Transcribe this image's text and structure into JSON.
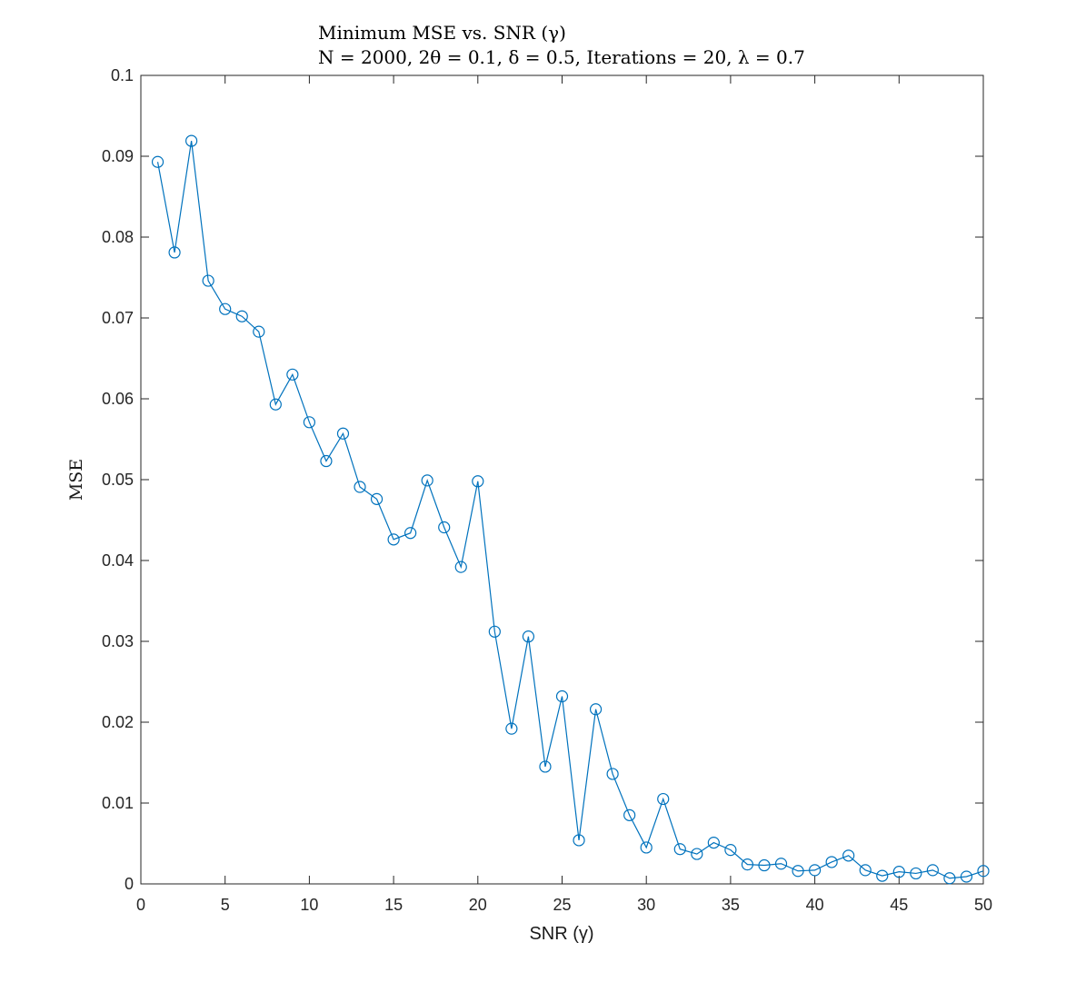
{
  "chart_data": {
    "type": "line",
    "title": "Minimum MSE vs. SNR (γ)",
    "subtitle": "N = 2000, 2θ = 0.1, δ = 0.5, Iterations = 20, λ = 0.7",
    "xlabel": "SNR (γ)",
    "ylabel": "MSE",
    "xlim": [
      0,
      50
    ],
    "ylim": [
      0,
      0.1
    ],
    "xticks": [
      0,
      5,
      10,
      15,
      20,
      25,
      30,
      35,
      40,
      45,
      50
    ],
    "xtick_labels": [
      "0",
      "5",
      "10",
      "15",
      "20",
      "25",
      "30",
      "35",
      "40",
      "45",
      "50"
    ],
    "yticks": [
      0,
      0.01,
      0.02,
      0.03,
      0.04,
      0.05,
      0.06,
      0.07,
      0.08,
      0.09,
      0.1
    ],
    "ytick_labels": [
      "0",
      "0.01",
      "0.02",
      "0.03",
      "0.04",
      "0.05",
      "0.06",
      "0.07",
      "0.08",
      "0.09",
      "0.1"
    ],
    "grid": false,
    "marker": "circle",
    "series": [
      {
        "color": "#0072BD",
        "x": [
          1,
          2,
          3,
          4,
          5,
          6,
          7,
          8,
          9,
          10,
          11,
          12,
          13,
          14,
          15,
          16,
          17,
          18,
          19,
          20,
          21,
          22,
          23,
          24,
          25,
          26,
          27,
          28,
          29,
          30,
          31,
          32,
          33,
          34,
          35,
          36,
          37,
          38,
          39,
          40,
          41,
          42,
          43,
          44,
          45,
          46,
          47,
          48,
          49,
          50
        ],
        "y": [
          0.0893,
          0.0781,
          0.0919,
          0.0746,
          0.0711,
          0.0702,
          0.0683,
          0.0593,
          0.063,
          0.0571,
          0.0523,
          0.0557,
          0.0491,
          0.0476,
          0.0426,
          0.0434,
          0.0499,
          0.0441,
          0.0392,
          0.0498,
          0.0312,
          0.0192,
          0.0306,
          0.0145,
          0.0232,
          0.0054,
          0.0216,
          0.0136,
          0.0085,
          0.0045,
          0.0105,
          0.0043,
          0.0037,
          0.0051,
          0.0042,
          0.0024,
          0.0023,
          0.0025,
          0.0016,
          0.0017,
          0.0027,
          0.0035,
          0.0017,
          0.001,
          0.0015,
          0.0013,
          0.0017,
          0.0007,
          0.0009,
          0.0016
        ]
      }
    ]
  }
}
